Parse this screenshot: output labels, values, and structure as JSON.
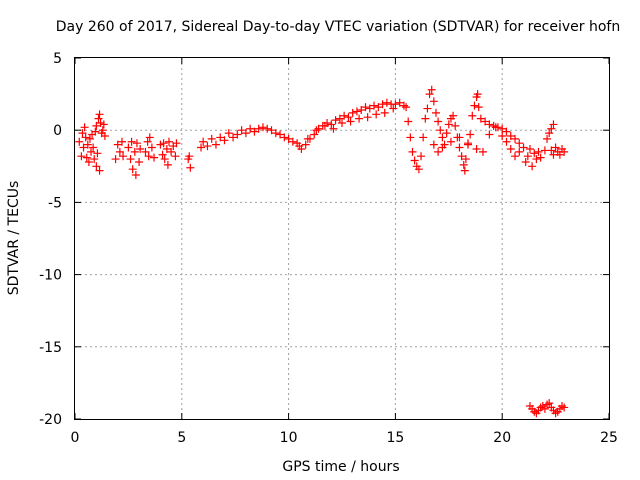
{
  "chart_data": {
    "type": "scatter",
    "title": "Day 260 of 2017, Sidereal Day-to-day VTEC variation (SDTVAR) for receiver hofn",
    "xlabel": "GPS time / hours",
    "ylabel": "SDTVAR / TECUs",
    "xlim": [
      0,
      25
    ],
    "ylim": [
      -20,
      5
    ],
    "xticks": [
      0,
      5,
      10,
      15,
      20,
      25
    ],
    "yticks": [
      5,
      0,
      -5,
      -10,
      -15,
      -20
    ],
    "grid": true,
    "marker": "+",
    "color": "#ff0000",
    "series": [
      {
        "name": "SDTVAR",
        "points": [
          [
            0.2,
            -0.8
          ],
          [
            0.3,
            -1.8
          ],
          [
            0.35,
            -0.2
          ],
          [
            0.4,
            -1.2
          ],
          [
            0.45,
            0.2
          ],
          [
            0.5,
            -0.5
          ],
          [
            0.55,
            -1.9
          ],
          [
            0.6,
            -1.0
          ],
          [
            0.65,
            -2.2
          ],
          [
            0.7,
            -0.6
          ],
          [
            0.75,
            -1.5
          ],
          [
            0.8,
            -0.3
          ],
          [
            0.85,
            -1.2
          ],
          [
            0.9,
            -2.0
          ],
          [
            0.95,
            -0.1
          ],
          [
            1.0,
            -2.5
          ],
          [
            1.0,
            0.3
          ],
          [
            1.05,
            -1.6
          ],
          [
            1.1,
            0.8
          ],
          [
            1.15,
            -2.8
          ],
          [
            1.15,
            1.1
          ],
          [
            1.2,
            0.5
          ],
          [
            1.25,
            -0.2
          ],
          [
            1.3,
            0.0
          ],
          [
            1.35,
            0.4
          ],
          [
            1.4,
            -0.4
          ],
          [
            1.9,
            -2.0
          ],
          [
            2.0,
            -1.0
          ],
          [
            2.1,
            -1.5
          ],
          [
            2.2,
            -0.8
          ],
          [
            2.25,
            -1.8
          ],
          [
            2.5,
            -1.2
          ],
          [
            2.6,
            -2.0
          ],
          [
            2.65,
            -0.8
          ],
          [
            2.7,
            -2.7
          ],
          [
            2.8,
            -1.5
          ],
          [
            2.85,
            -3.1
          ],
          [
            2.9,
            -0.9
          ],
          [
            3.0,
            -2.2
          ],
          [
            3.05,
            -1.3
          ],
          [
            3.3,
            -1.5
          ],
          [
            3.4,
            -0.8
          ],
          [
            3.45,
            -1.8
          ],
          [
            3.5,
            -0.5
          ],
          [
            3.6,
            -1.2
          ],
          [
            3.7,
            -1.9
          ],
          [
            4.0,
            -1.0
          ],
          [
            4.1,
            -1.7
          ],
          [
            4.15,
            -0.9
          ],
          [
            4.2,
            -2.0
          ],
          [
            4.3,
            -1.3
          ],
          [
            4.35,
            -2.4
          ],
          [
            4.4,
            -0.8
          ],
          [
            4.5,
            -1.5
          ],
          [
            4.6,
            -1.1
          ],
          [
            4.7,
            -1.8
          ],
          [
            4.75,
            -0.9
          ],
          [
            5.3,
            -2.0
          ],
          [
            5.35,
            -1.8
          ],
          [
            5.4,
            -2.6
          ],
          [
            5.9,
            -1.2
          ],
          [
            6.0,
            -0.8
          ],
          [
            6.2,
            -1.1
          ],
          [
            6.4,
            -0.6
          ],
          [
            6.6,
            -1.0
          ],
          [
            6.8,
            -0.5
          ],
          [
            7.0,
            -0.7
          ],
          [
            7.2,
            -0.2
          ],
          [
            7.4,
            -0.5
          ],
          [
            7.6,
            -0.3
          ],
          [
            7.8,
            0.0
          ],
          [
            8.0,
            -0.2
          ],
          [
            8.2,
            0.1
          ],
          [
            8.4,
            -0.1
          ],
          [
            8.6,
            0.1
          ],
          [
            8.8,
            0.2
          ],
          [
            9.0,
            0.1
          ],
          [
            9.2,
            0.0
          ],
          [
            9.4,
            -0.2
          ],
          [
            9.6,
            -0.3
          ],
          [
            9.8,
            -0.5
          ],
          [
            10.0,
            -0.6
          ],
          [
            10.2,
            -0.8
          ],
          [
            10.4,
            -0.9
          ],
          [
            10.5,
            -1.1
          ],
          [
            10.6,
            -1.3
          ],
          [
            10.8,
            -1.0
          ],
          [
            11.0,
            -0.6
          ],
          [
            11.2,
            -0.3
          ],
          [
            11.4,
            0.1
          ],
          [
            11.6,
            0.3
          ],
          [
            11.8,
            0.5
          ],
          [
            12.0,
            0.4
          ],
          [
            12.2,
            0.7
          ],
          [
            12.4,
            0.8
          ],
          [
            12.6,
            1.0
          ],
          [
            12.8,
            0.9
          ],
          [
            13.0,
            1.2
          ],
          [
            13.2,
            1.3
          ],
          [
            13.4,
            1.4
          ],
          [
            13.6,
            1.6
          ],
          [
            13.8,
            1.5
          ],
          [
            14.0,
            1.7
          ],
          [
            14.2,
            1.6
          ],
          [
            14.4,
            1.8
          ],
          [
            14.6,
            1.9
          ],
          [
            14.8,
            1.8
          ],
          [
            10.9,
            -0.6
          ],
          [
            11.3,
            0.0
          ],
          [
            11.7,
            0.3
          ],
          [
            12.1,
            0.1
          ],
          [
            12.5,
            0.5
          ],
          [
            12.9,
            0.6
          ],
          [
            13.3,
            0.8
          ],
          [
            13.7,
            0.9
          ],
          [
            14.1,
            1.1
          ],
          [
            14.5,
            1.2
          ],
          [
            14.9,
            1.5
          ],
          [
            15.0,
            1.8
          ],
          [
            15.2,
            1.9
          ],
          [
            15.4,
            1.7
          ],
          [
            15.5,
            1.6
          ],
          [
            15.6,
            0.6
          ],
          [
            15.7,
            -0.5
          ],
          [
            15.8,
            -1.5
          ],
          [
            15.9,
            -2.1
          ],
          [
            16.0,
            -2.5
          ],
          [
            16.1,
            -2.7
          ],
          [
            16.2,
            -1.8
          ],
          [
            16.3,
            -0.5
          ],
          [
            16.4,
            0.8
          ],
          [
            16.5,
            1.5
          ],
          [
            16.6,
            2.5
          ],
          [
            16.7,
            2.8
          ],
          [
            16.8,
            2.0
          ],
          [
            16.9,
            1.2
          ],
          [
            17.0,
            0.6
          ],
          [
            17.1,
            0.0
          ],
          [
            17.2,
            -0.5
          ],
          [
            17.3,
            -1.0
          ],
          [
            17.4,
            -0.2
          ],
          [
            17.5,
            0.4
          ],
          [
            17.6,
            0.8
          ],
          [
            17.7,
            1.0
          ],
          [
            17.8,
            0.3
          ],
          [
            17.9,
            -0.5
          ],
          [
            18.0,
            -1.2
          ],
          [
            18.1,
            -1.8
          ],
          [
            18.2,
            -2.4
          ],
          [
            18.25,
            -2.8
          ],
          [
            18.3,
            -2.0
          ],
          [
            18.4,
            -1.0
          ],
          [
            18.5,
            -0.3
          ],
          [
            18.6,
            1.0
          ],
          [
            18.7,
            1.7
          ],
          [
            18.8,
            2.3
          ],
          [
            18.85,
            2.5
          ],
          [
            18.9,
            1.6
          ],
          [
            19.0,
            0.8
          ],
          [
            19.2,
            0.6
          ],
          [
            19.4,
            0.4
          ],
          [
            19.6,
            0.3
          ],
          [
            19.8,
            0.2
          ],
          [
            20.0,
            0.1
          ],
          [
            20.2,
            -0.1
          ],
          [
            20.4,
            -0.4
          ],
          [
            20.6,
            -0.6
          ],
          [
            20.8,
            -0.9
          ],
          [
            16.8,
            -1.0
          ],
          [
            17.0,
            -1.5
          ],
          [
            17.2,
            -1.2
          ],
          [
            17.6,
            -0.8
          ],
          [
            18.0,
            -0.5
          ],
          [
            18.4,
            -0.9
          ],
          [
            18.8,
            -1.3
          ],
          [
            19.1,
            -1.5
          ],
          [
            19.4,
            -0.3
          ],
          [
            19.7,
            0.2
          ],
          [
            20.0,
            -0.4
          ],
          [
            20.2,
            -0.8
          ],
          [
            20.4,
            -1.3
          ],
          [
            20.6,
            -1.8
          ],
          [
            20.8,
            -1.5
          ],
          [
            21.0,
            -1.2
          ],
          [
            21.1,
            -2.2
          ],
          [
            21.2,
            -1.8
          ],
          [
            21.3,
            -1.3
          ],
          [
            21.4,
            -2.5
          ],
          [
            21.5,
            -1.6
          ],
          [
            21.6,
            -2.0
          ],
          [
            21.7,
            -1.5
          ],
          [
            21.8,
            -1.9
          ],
          [
            22.0,
            -1.4
          ],
          [
            22.1,
            -0.6
          ],
          [
            22.2,
            -0.2
          ],
          [
            22.3,
            0.1
          ],
          [
            22.4,
            0.4
          ],
          [
            22.3,
            -1.4
          ],
          [
            22.4,
            -1.7
          ],
          [
            22.5,
            -1.2
          ],
          [
            22.6,
            -1.5
          ],
          [
            22.7,
            -1.7
          ],
          [
            22.8,
            -1.3
          ],
          [
            22.9,
            -1.5
          ],
          [
            21.3,
            -19.1
          ],
          [
            21.4,
            -19.3
          ],
          [
            21.5,
            -19.5
          ],
          [
            21.6,
            -19.6
          ],
          [
            21.7,
            -19.4
          ],
          [
            21.8,
            -19.2
          ],
          [
            21.9,
            -19.1
          ],
          [
            22.0,
            -19.3
          ],
          [
            22.1,
            -19.0
          ],
          [
            22.2,
            -18.9
          ],
          [
            22.3,
            -19.2
          ],
          [
            22.4,
            -19.4
          ],
          [
            22.5,
            -19.6
          ],
          [
            22.6,
            -19.5
          ],
          [
            22.7,
            -19.3
          ],
          [
            22.8,
            -19.1
          ],
          [
            22.9,
            -19.2
          ]
        ]
      }
    ]
  }
}
